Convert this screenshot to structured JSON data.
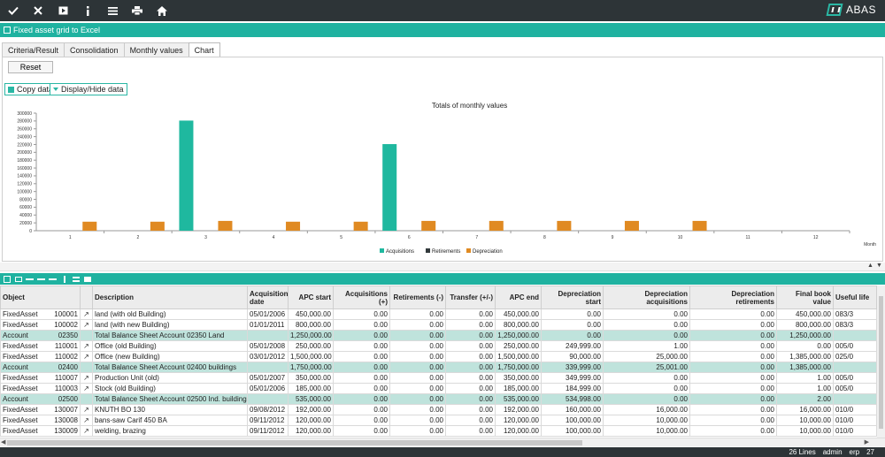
{
  "toolbar": {
    "icons": [
      "check-icon",
      "close-icon",
      "play-icon",
      "info-icon",
      "menu-icon",
      "print-icon",
      "home-icon"
    ]
  },
  "brand": {
    "name": "ABAS"
  },
  "title": "Fixed asset grid to Excel",
  "tabs": [
    "Criteria/Result",
    "Consolidation",
    "Monthly values",
    "Chart"
  ],
  "active_tab": "Chart",
  "buttons": {
    "reset": "Reset",
    "copy": "Copy data",
    "display_hide": "Display/Hide data"
  },
  "chart_data": {
    "type": "bar",
    "title": "Totals of monthly values",
    "xlabel": "Month",
    "ylabel": "",
    "categories": [
      "1",
      "2",
      "3",
      "4",
      "5",
      "6",
      "7",
      "8",
      "9",
      "10",
      "11",
      "12"
    ],
    "ylim": [
      0,
      300000
    ],
    "yticks": [
      0,
      20000,
      40000,
      60000,
      80000,
      100000,
      120000,
      140000,
      160000,
      180000,
      200000,
      220000,
      240000,
      260000,
      280000,
      300000
    ],
    "legend_position": "bottom",
    "series": [
      {
        "name": "Acquisitions",
        "color": "#1fb89f",
        "values": [
          0,
          0,
          281000,
          0,
          0,
          221000,
          0,
          0,
          0,
          0,
          0,
          0
        ]
      },
      {
        "name": "Retirements",
        "color": "#333a3c",
        "values": [
          0,
          0,
          0,
          0,
          0,
          0,
          0,
          0,
          0,
          0,
          0,
          0
        ]
      },
      {
        "name": "Depreciation",
        "color": "#e08a22",
        "values": [
          23000,
          23000,
          25000,
          23000,
          23000,
          25000,
          25000,
          25000,
          25000,
          25000,
          0,
          0
        ]
      }
    ]
  },
  "grid": {
    "columns": [
      "Object",
      "",
      "Description",
      "Acquisition date",
      "APC start",
      "Acquisitions (+)",
      "Retirements (-)",
      "Transfer (+/-)",
      "APC end",
      "Depreciation start",
      "Depreciation acquisitions",
      "Depreciation retirements",
      "Final book value",
      "Useful life"
    ],
    "rows": [
      {
        "type": "FixedAsset",
        "num": "100001",
        "desc": "land (with old Building)",
        "date": "05/01/2006",
        "apc_start": "450,000.00",
        "acq": "0.00",
        "ret": "0.00",
        "trans": "0.00",
        "apc_end": "450,000.00",
        "dep_start": "0.00",
        "dep_acq": "0.00",
        "dep_ret": "0.00",
        "fbv": "450,000.00",
        "life": "083/3",
        "total": false
      },
      {
        "type": "FixedAsset",
        "num": "100002",
        "desc": "land (with new Building)",
        "date": "01/01/2011",
        "apc_start": "800,000.00",
        "acq": "0.00",
        "ret": "0.00",
        "trans": "0.00",
        "apc_end": "800,000.00",
        "dep_start": "0.00",
        "dep_acq": "0.00",
        "dep_ret": "0.00",
        "fbv": "800,000.00",
        "life": "083/3",
        "total": false
      },
      {
        "type": "Account",
        "num": "02350",
        "desc": "Total Balance Sheet Account 02350 Land",
        "date": "",
        "apc_start": "1,250,000.00",
        "acq": "0.00",
        "ret": "0.00",
        "trans": "0.00",
        "apc_end": "1,250,000.00",
        "dep_start": "0.00",
        "dep_acq": "0.00",
        "dep_ret": "0.00",
        "fbv": "1,250,000.00",
        "life": "",
        "total": true
      },
      {
        "type": "FixedAsset",
        "num": "110001",
        "desc": "Office (old Building)",
        "date": "05/01/2008",
        "apc_start": "250,000.00",
        "acq": "0.00",
        "ret": "0.00",
        "trans": "0.00",
        "apc_end": "250,000.00",
        "dep_start": "249,999.00",
        "dep_acq": "1.00",
        "dep_ret": "0.00",
        "fbv": "0.00",
        "life": "005/0",
        "total": false
      },
      {
        "type": "FixedAsset",
        "num": "110002",
        "desc": "Office (new Building)",
        "date": "03/01/2012",
        "apc_start": "1,500,000.00",
        "acq": "0.00",
        "ret": "0.00",
        "trans": "0.00",
        "apc_end": "1,500,000.00",
        "dep_start": "90,000.00",
        "dep_acq": "25,000.00",
        "dep_ret": "0.00",
        "fbv": "1,385,000.00",
        "life": "025/0",
        "total": false
      },
      {
        "type": "Account",
        "num": "02400",
        "desc": "Total Balance Sheet Account 02400 buildings",
        "date": "",
        "apc_start": "1,750,000.00",
        "acq": "0.00",
        "ret": "0.00",
        "trans": "0.00",
        "apc_end": "1,750,000.00",
        "dep_start": "339,999.00",
        "dep_acq": "25,001.00",
        "dep_ret": "0.00",
        "fbv": "1,385,000.00",
        "life": "",
        "total": true
      },
      {
        "type": "FixedAsset",
        "num": "110007",
        "desc": "Production Unit (old)",
        "date": "05/01/2007",
        "apc_start": "350,000.00",
        "acq": "0.00",
        "ret": "0.00",
        "trans": "0.00",
        "apc_end": "350,000.00",
        "dep_start": "349,999.00",
        "dep_acq": "0.00",
        "dep_ret": "0.00",
        "fbv": "1.00",
        "life": "005/0",
        "total": false
      },
      {
        "type": "FixedAsset",
        "num": "110003",
        "desc": "Stock (old Building)",
        "date": "05/01/2006",
        "apc_start": "185,000.00",
        "acq": "0.00",
        "ret": "0.00",
        "trans": "0.00",
        "apc_end": "185,000.00",
        "dep_start": "184,999.00",
        "dep_acq": "0.00",
        "dep_ret": "0.00",
        "fbv": "1.00",
        "life": "005/0",
        "total": false
      },
      {
        "type": "Account",
        "num": "02500",
        "desc": "Total Balance Sheet Account 02500 Ind. buildings",
        "date": "",
        "apc_start": "535,000.00",
        "acq": "0.00",
        "ret": "0.00",
        "trans": "0.00",
        "apc_end": "535,000.00",
        "dep_start": "534,998.00",
        "dep_acq": "0.00",
        "dep_ret": "0.00",
        "fbv": "2.00",
        "life": "",
        "total": true
      },
      {
        "type": "FixedAsset",
        "num": "130007",
        "desc": "KNUTH BO 130",
        "date": "09/08/2012",
        "apc_start": "192,000.00",
        "acq": "0.00",
        "ret": "0.00",
        "trans": "0.00",
        "apc_end": "192,000.00",
        "dep_start": "160,000.00",
        "dep_acq": "16,000.00",
        "dep_ret": "0.00",
        "fbv": "16,000.00",
        "life": "010/0",
        "total": false
      },
      {
        "type": "FixedAsset",
        "num": "130008",
        "desc": "bans-saw  Carif 450 BA",
        "date": "09/11/2012",
        "apc_start": "120,000.00",
        "acq": "0.00",
        "ret": "0.00",
        "trans": "0.00",
        "apc_end": "120,000.00",
        "dep_start": "100,000.00",
        "dep_acq": "10,000.00",
        "dep_ret": "0.00",
        "fbv": "10,000.00",
        "life": "010/0",
        "total": false
      },
      {
        "type": "FixedAsset",
        "num": "130009",
        "desc": "welding, brazing",
        "date": "09/11/2012",
        "apc_start": "120,000.00",
        "acq": "0.00",
        "ret": "0.00",
        "trans": "0.00",
        "apc_end": "120,000.00",
        "dep_start": "100,000.00",
        "dep_acq": "10,000.00",
        "dep_ret": "0.00",
        "fbv": "10,000.00",
        "life": "010/0",
        "total": false
      }
    ]
  },
  "status": {
    "lines": "26 Lines",
    "user": "admin",
    "client": "erp",
    "number": "27"
  }
}
